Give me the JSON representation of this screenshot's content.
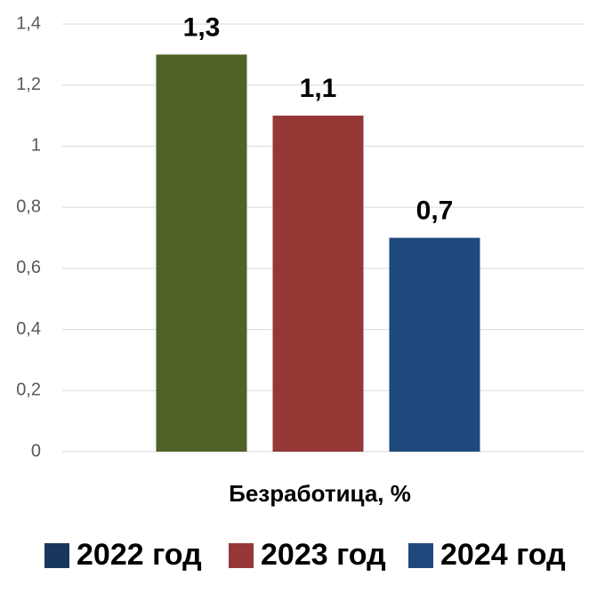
{
  "chart_data": {
    "type": "bar",
    "categories": [
      "Безработица, %"
    ],
    "series": [
      {
        "name": "2022 год",
        "color": "#4f6228",
        "legend_color": "#17375e",
        "values": [
          1.3
        ],
        "value_labels": [
          "1,3"
        ]
      },
      {
        "name": "2023 год",
        "color": "#953735",
        "legend_color": "#953735",
        "values": [
          1.1
        ],
        "value_labels": [
          "1,1"
        ]
      },
      {
        "name": "2024 год",
        "color": "#1f497d",
        "legend_color": "#1f497d",
        "values": [
          0.7
        ],
        "value_labels": [
          "0,7"
        ]
      }
    ],
    "ylim": [
      0,
      1.4
    ],
    "yticks": [
      0,
      {
        "value": 0.2,
        "label": "0,2"
      },
      {
        "value": 0.4,
        "label": "0,4"
      },
      {
        "value": 0.6,
        "label": "0,6"
      },
      {
        "value": 0.8,
        "label": "0,8"
      },
      1,
      {
        "value": 1.2,
        "label": "1,2"
      },
      {
        "value": 1.4,
        "label": "1,4"
      }
    ],
    "grid": true,
    "legend": "bottom"
  }
}
